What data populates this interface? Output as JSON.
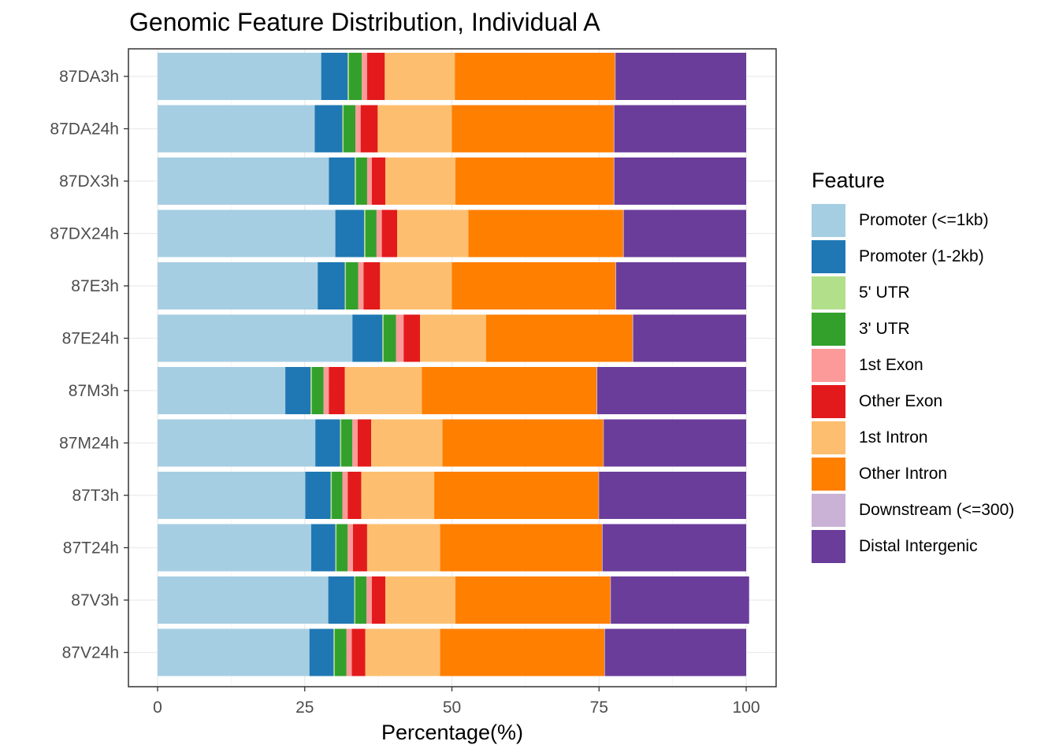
{
  "chart_data": {
    "type": "bar",
    "orientation": "horizontal",
    "stacked": true,
    "title": "Genomic Feature Distribution, Individual A",
    "xlabel": "Percentage(%)",
    "ylabel": "",
    "xlim": [
      0,
      100
    ],
    "xticks": [
      0,
      25,
      50,
      75,
      100
    ],
    "grid": true,
    "legend_position": "right",
    "legend_title": "Feature",
    "categories": [
      "87DA3h",
      "87DA24h",
      "87DX3h",
      "87DX24h",
      "87E3h",
      "87E24h",
      "87M3h",
      "87M24h",
      "87T3h",
      "87T24h",
      "87V3h",
      "87V24h"
    ],
    "series": [
      {
        "name": "Promoter (<=1kb)",
        "color": "#A6CEE3",
        "values": [
          27.8,
          26.7,
          29.1,
          30.2,
          27.2,
          33.1,
          21.7,
          26.8,
          25.1,
          26.1,
          29.0,
          25.8
        ]
      },
      {
        "name": "Promoter (1-2kb)",
        "color": "#1F78B4",
        "values": [
          4.5,
          4.7,
          4.4,
          4.9,
          4.6,
          5.1,
          4.3,
          4.2,
          4.3,
          4.1,
          4.4,
          4.1
        ]
      },
      {
        "name": "5' UTR",
        "color": "#B2DF8A",
        "values": [
          0.2,
          0.2,
          0.2,
          0.2,
          0.2,
          0.2,
          0.2,
          0.2,
          0.2,
          0.2,
          0.2,
          0.2
        ]
      },
      {
        "name": "3' UTR",
        "color": "#33A02C",
        "values": [
          2.2,
          2.0,
          1.9,
          1.9,
          2.1,
          2.1,
          2.0,
          1.9,
          1.8,
          1.9,
          1.9,
          2.0
        ]
      },
      {
        "name": "1st Exon",
        "color": "#FB9A99",
        "values": [
          0.9,
          0.9,
          0.8,
          0.9,
          0.9,
          1.3,
          0.9,
          0.9,
          0.9,
          0.9,
          0.9,
          0.9
        ]
      },
      {
        "name": "Other Exon",
        "color": "#E31A1C",
        "values": [
          3.0,
          2.9,
          2.3,
          2.6,
          2.8,
          2.8,
          2.7,
          2.3,
          2.3,
          2.4,
          2.3,
          2.3
        ]
      },
      {
        "name": "1st Intron",
        "color": "#FDBF6F",
        "values": [
          11.9,
          12.6,
          11.9,
          12.1,
          12.2,
          11.2,
          13.1,
          12.1,
          12.4,
          12.4,
          11.9,
          12.7
        ]
      },
      {
        "name": "Other Intron",
        "color": "#FF7F00",
        "values": [
          27.2,
          27.5,
          26.9,
          26.3,
          27.8,
          24.9,
          29.7,
          27.3,
          27.9,
          27.5,
          26.3,
          27.9
        ]
      },
      {
        "name": "Downstream (<=300)",
        "color": "#CAB2D6",
        "values": [
          0.1,
          0.1,
          0.1,
          0.1,
          0.1,
          0.1,
          0.1,
          0.1,
          0.1,
          0.1,
          0.1,
          0.1
        ]
      },
      {
        "name": "Distal Intergenic",
        "color": "#6A3D9A",
        "values": [
          22.2,
          22.4,
          22.4,
          20.8,
          22.1,
          19.2,
          25.3,
          24.2,
          25.0,
          24.4,
          23.5,
          24.0
        ]
      }
    ]
  }
}
